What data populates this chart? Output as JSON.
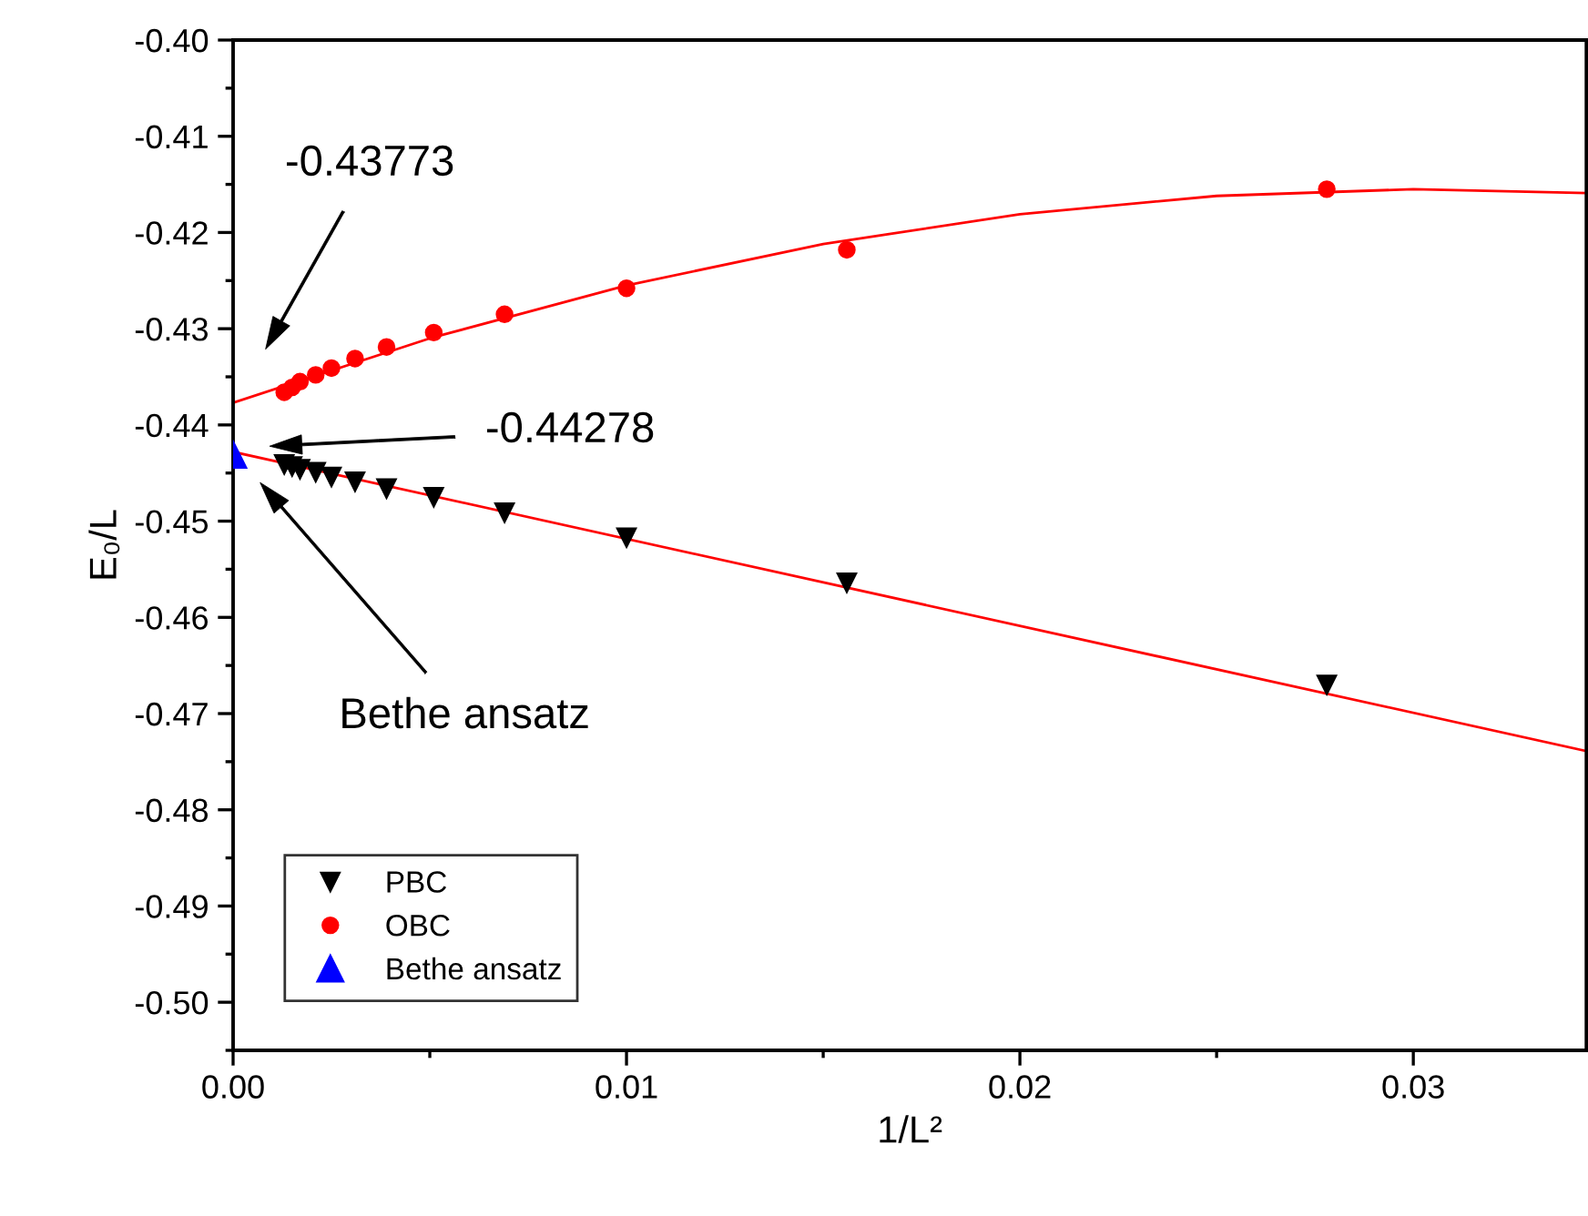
{
  "chart_data": {
    "type": "scatter",
    "xlabel": "1/L²",
    "ylabel": "E₀/L",
    "xlim": [
      0,
      0.0344
    ],
    "ylim": [
      -0.505,
      -0.4
    ],
    "xticks": [
      {
        "value": 0,
        "label": "0.00"
      },
      0.01,
      0.02,
      0.03
    ],
    "yticks": [
      {
        "value": -0.5,
        "label": "-0.50"
      },
      -0.49,
      -0.48,
      -0.47,
      -0.46,
      -0.45,
      -0.44,
      -0.43,
      -0.42,
      -0.41,
      {
        "value": -0.4,
        "label": "-0.40"
      }
    ],
    "legend": "bottom left",
    "grid": false,
    "series": [
      {
        "name": "PBC",
        "color": "#000000",
        "marker": "triangle_down",
        "x": [
          0.0013,
          0.0015,
          0.0017,
          0.0021,
          0.0025,
          0.0031,
          0.0039,
          0.0051,
          0.0069,
          0.01,
          0.0156,
          0.0278
        ],
        "values": [
          -0.4441,
          -0.4443,
          -0.4446,
          -0.4449,
          -0.4454,
          -0.4459,
          -0.4466,
          -0.4475,
          -0.4491,
          -0.4517,
          -0.4564,
          -0.467
        ]
      },
      {
        "name": "OBC",
        "color": "#ff0000",
        "marker": "circle",
        "x": [
          0.0013,
          0.0015,
          0.0017,
          0.0021,
          0.0025,
          0.0031,
          0.0039,
          0.0051,
          0.0069,
          0.01,
          0.0156,
          0.0278
        ],
        "values": [
          -0.4366,
          -0.4361,
          -0.4355,
          -0.4348,
          -0.4341,
          -0.4331,
          -0.4319,
          -0.4304,
          -0.4285,
          -0.4258,
          -0.4218,
          -0.4155
        ]
      },
      {
        "name": "Bethe ansatz",
        "color": "#0000ff",
        "marker": "triangle",
        "x": [
          0
        ],
        "values": [
          -0.4431
        ]
      },
      {
        "type": "line",
        "color": "#ff0000",
        "marker": "none",
        "x": [
          0,
          0.005,
          0.01,
          0.015,
          0.02,
          0.025,
          0.03,
          0.0344
        ],
        "values": [
          -0.4377,
          -0.431,
          -0.4255,
          -0.4212,
          -0.4181,
          -0.4162,
          -0.4155,
          -0.4159
        ]
      },
      {
        "type": "line",
        "color": "#ff0000",
        "marker": "none",
        "x": [
          0,
          0.0344
        ],
        "values": [
          -0.4428,
          -0.4739
        ]
      }
    ],
    "annotations": [
      "-0.43773",
      "-0.44278",
      "Bethe ansatz"
    ]
  }
}
